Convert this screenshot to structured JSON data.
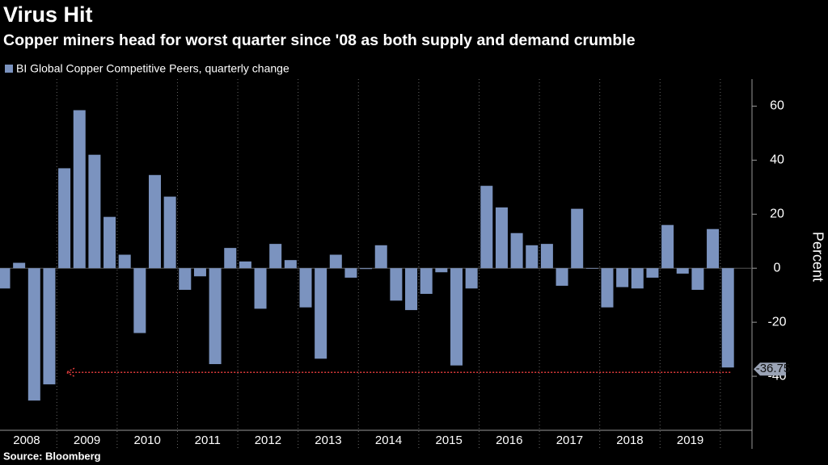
{
  "chart_data": {
    "type": "bar",
    "title": "Virus Hit",
    "subtitle": "Copper miners head for worst quarter since '08 as both supply and demand crumble",
    "series_name": "BI Global Copper Competitive Peers, quarterly change",
    "color": "#7b93bf",
    "year_labels": [
      "2008",
      "2009",
      "2010",
      "2011",
      "2012",
      "2013",
      "2014",
      "2015",
      "2016",
      "2017",
      "2018",
      "2019"
    ],
    "values": [
      -7.5,
      2,
      -49,
      -43,
      37,
      58.5,
      42,
      19,
      5,
      -24,
      34.5,
      26.5,
      -8,
      -3,
      -35.5,
      7.5,
      2.5,
      -15,
      9,
      3,
      -14.5,
      -33.5,
      5,
      -3.5,
      -0.3,
      8.5,
      -12,
      -15.5,
      -9.5,
      -1.5,
      -36,
      -7.5,
      30.5,
      22.5,
      13,
      8.5,
      9,
      -6.5,
      22,
      -0.2,
      -14.5,
      -7,
      -7.5,
      -3.5,
      16,
      -2,
      -8,
      14.5,
      -36.75
    ],
    "last_value_label": "-36.75",
    "ylim": [
      -60,
      70
    ],
    "yticks": [
      60,
      40,
      20,
      0,
      -20,
      -40
    ],
    "ylabel": "Percent",
    "source": "Source: Bloomberg"
  }
}
